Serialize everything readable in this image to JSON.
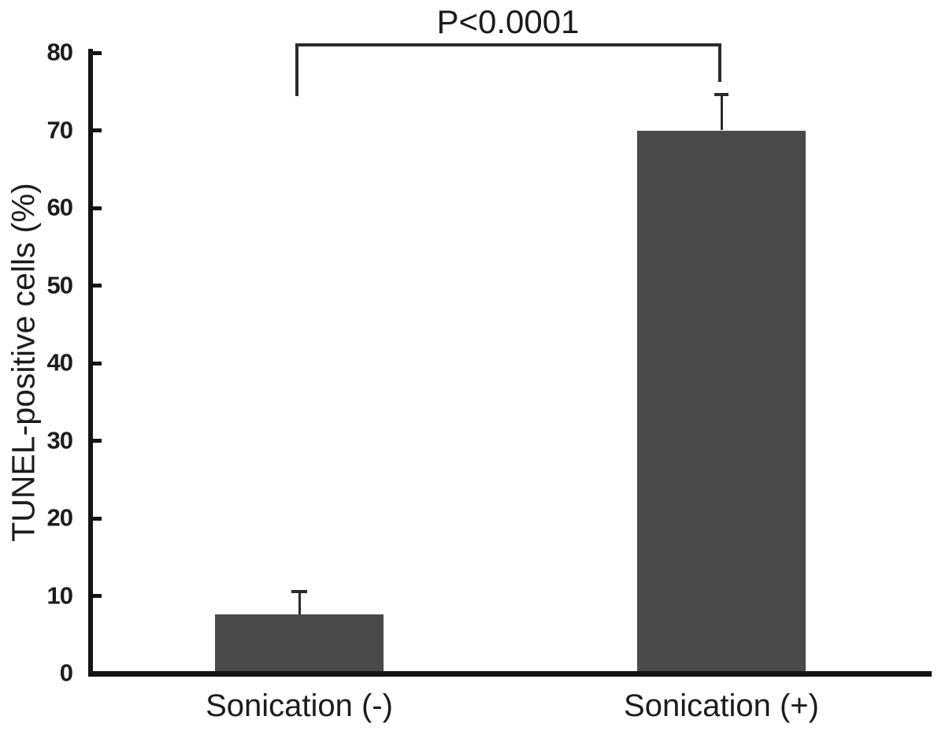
{
  "chart_data": {
    "type": "bar",
    "title": "",
    "xlabel": "",
    "ylabel": "TUNEL-positive cells (%)",
    "categories": [
      "Sonication (-)",
      "Sonication (+)"
    ],
    "values": [
      7.6,
      70.0
    ],
    "errors_up": [
      2.9,
      4.5
    ],
    "ylim": [
      0,
      80
    ],
    "yticks": [
      0,
      10,
      20,
      30,
      40,
      50,
      60,
      70,
      80
    ],
    "grid": false,
    "legend": "none",
    "bar_color": "#4a4a4c",
    "axis_color": "#141414",
    "significance": {
      "label": "P<0.0001",
      "between": [
        0,
        1
      ]
    }
  }
}
